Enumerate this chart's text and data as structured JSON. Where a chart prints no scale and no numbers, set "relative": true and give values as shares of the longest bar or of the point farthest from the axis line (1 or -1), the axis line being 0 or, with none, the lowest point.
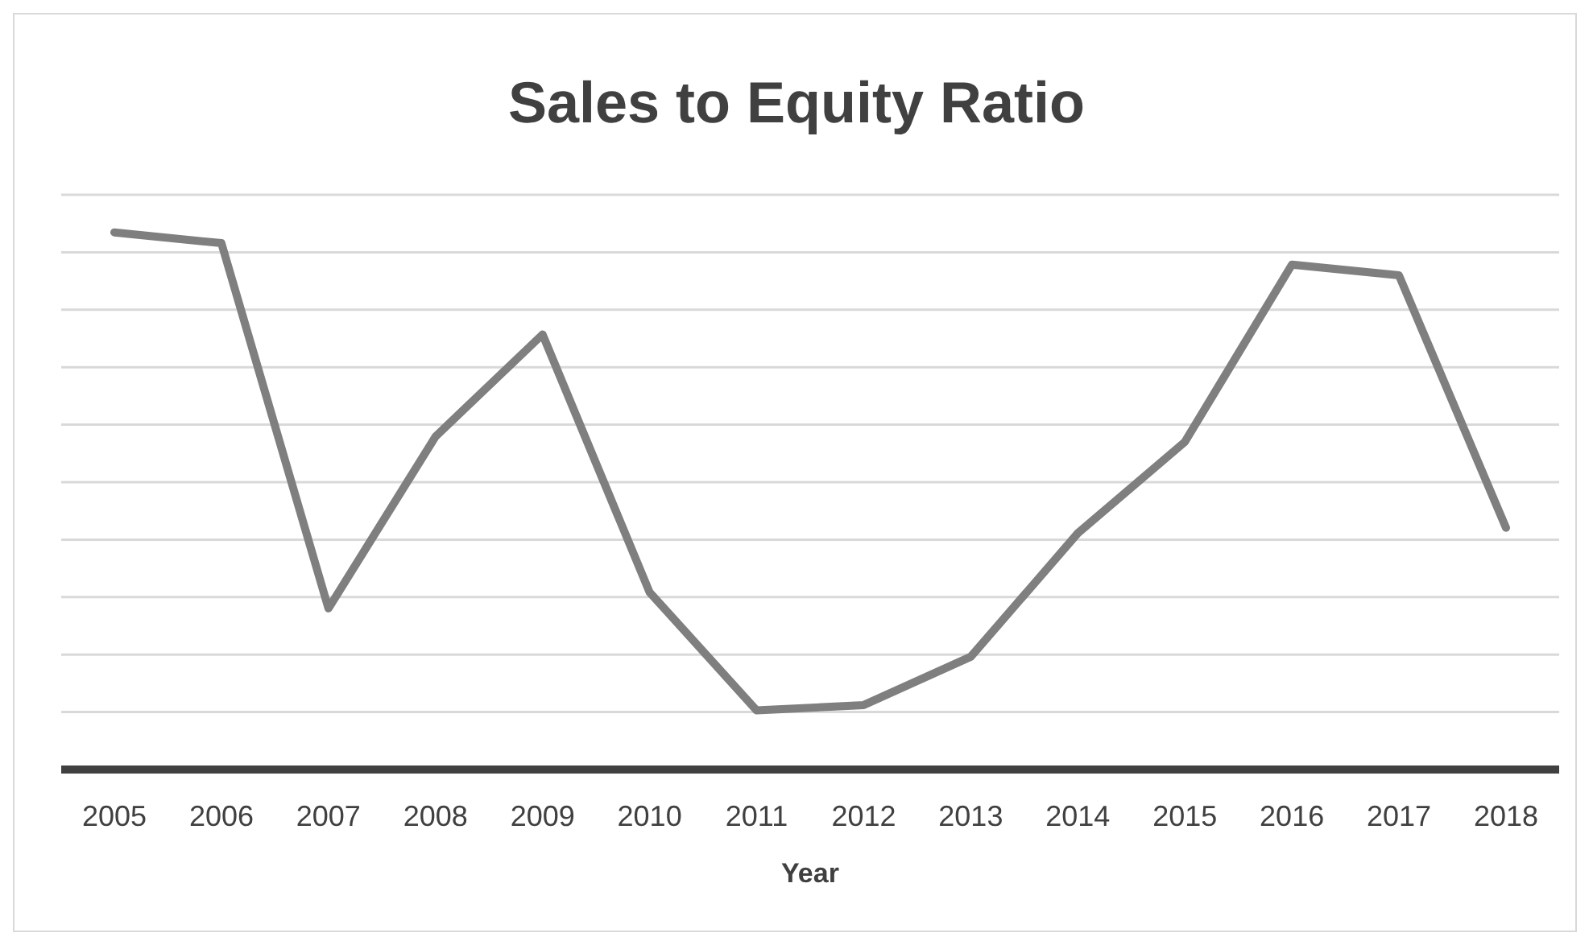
{
  "chart_data": {
    "type": "line",
    "title": "Sales to Equity Ratio",
    "xlabel": "Year",
    "relative": true,
    "grid": true,
    "marker": "none",
    "line_style": "solid",
    "categories": [
      "2005",
      "2006",
      "2007",
      "2008",
      "2009",
      "2010",
      "2011",
      "2012",
      "2013",
      "2014",
      "2015",
      "2016",
      "2017",
      "2018"
    ],
    "series": [
      {
        "color": "#7f7f7f",
        "values": [
          1,
          0.98,
          0.3,
          0.62,
          0.81,
          0.33,
          0.11,
          0.12,
          0.21,
          0.44,
          0.61,
          0.94,
          0.92,
          0.45
        ]
      }
    ]
  }
}
